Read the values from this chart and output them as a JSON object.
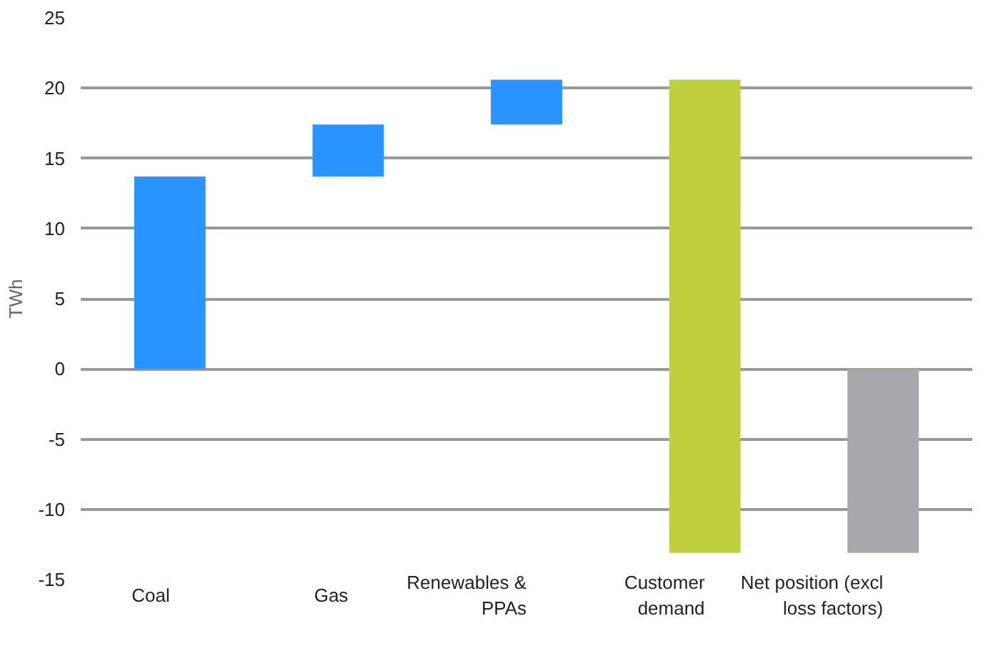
{
  "chart_data": {
    "type": "bar",
    "ylabel": "TWh",
    "categories": [
      "Coal",
      "Gas",
      "Renewables &\nPPAs",
      "Customer\ndemand",
      "Net position (excl\nloss factors)"
    ],
    "values": [
      13.7,
      3.7,
      3.2,
      -33.7,
      -13.1
    ],
    "base": [
      0,
      13.7,
      17.4,
      20.6,
      0
    ],
    "colors": [
      "#2994ff",
      "#2994ff",
      "#2994ff",
      "#c0cf3e",
      "#a7a8ab"
    ],
    "ylim": [
      -15,
      25
    ],
    "yticks": [
      -15,
      -10,
      -5,
      0,
      5,
      10,
      15,
      20,
      25
    ],
    "grid": "y"
  }
}
